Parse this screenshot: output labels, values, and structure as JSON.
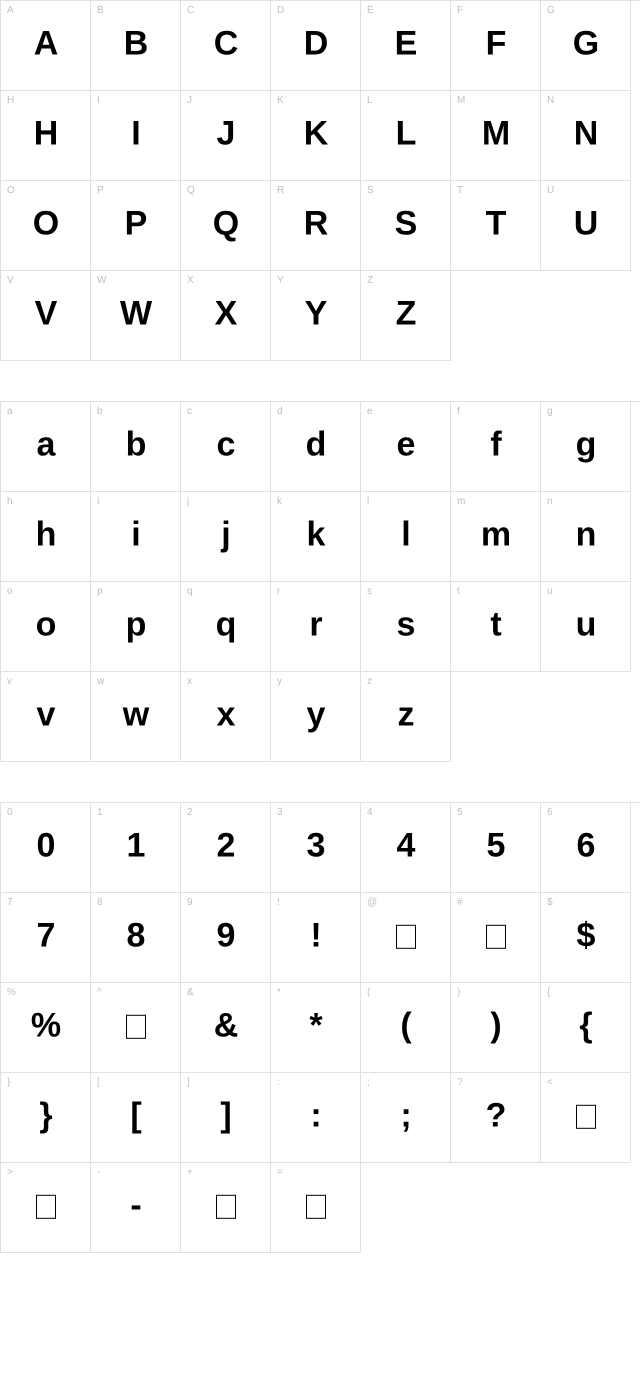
{
  "cell_border_color": "#e0e0e0",
  "label_color": "#bfbfbf",
  "label_fontsize": 10,
  "glyph_color": "#000000",
  "glyph_fontsize": 34,
  "background_color": "#ffffff",
  "columns": 7,
  "cell_size": 90,
  "sections": [
    {
      "name": "uppercase",
      "cells": [
        {
          "label": "A",
          "glyph": "A"
        },
        {
          "label": "B",
          "glyph": "B"
        },
        {
          "label": "C",
          "glyph": "C"
        },
        {
          "label": "D",
          "glyph": "D"
        },
        {
          "label": "E",
          "glyph": "E"
        },
        {
          "label": "F",
          "glyph": "F"
        },
        {
          "label": "G",
          "glyph": "G"
        },
        {
          "label": "H",
          "glyph": "H"
        },
        {
          "label": "I",
          "glyph": "I"
        },
        {
          "label": "J",
          "glyph": "J"
        },
        {
          "label": "K",
          "glyph": "K"
        },
        {
          "label": "L",
          "glyph": "L"
        },
        {
          "label": "M",
          "glyph": "M"
        },
        {
          "label": "N",
          "glyph": "N"
        },
        {
          "label": "O",
          "glyph": "O"
        },
        {
          "label": "P",
          "glyph": "P"
        },
        {
          "label": "Q",
          "glyph": "Q"
        },
        {
          "label": "R",
          "glyph": "R"
        },
        {
          "label": "S",
          "glyph": "S"
        },
        {
          "label": "T",
          "glyph": "T"
        },
        {
          "label": "U",
          "glyph": "U"
        },
        {
          "label": "V",
          "glyph": "V"
        },
        {
          "label": "W",
          "glyph": "W"
        },
        {
          "label": "X",
          "glyph": "X"
        },
        {
          "label": "Y",
          "glyph": "Y"
        },
        {
          "label": "Z",
          "glyph": "Z"
        }
      ]
    },
    {
      "name": "lowercase",
      "cells": [
        {
          "label": "a",
          "glyph": "a"
        },
        {
          "label": "b",
          "glyph": "b"
        },
        {
          "label": "c",
          "glyph": "c"
        },
        {
          "label": "d",
          "glyph": "d"
        },
        {
          "label": "e",
          "glyph": "e"
        },
        {
          "label": "f",
          "glyph": "f"
        },
        {
          "label": "g",
          "glyph": "g"
        },
        {
          "label": "h",
          "glyph": "h"
        },
        {
          "label": "i",
          "glyph": "i"
        },
        {
          "label": "j",
          "glyph": "j"
        },
        {
          "label": "k",
          "glyph": "k"
        },
        {
          "label": "l",
          "glyph": "l"
        },
        {
          "label": "m",
          "glyph": "m"
        },
        {
          "label": "n",
          "glyph": "n"
        },
        {
          "label": "o",
          "glyph": "o"
        },
        {
          "label": "p",
          "glyph": "p"
        },
        {
          "label": "q",
          "glyph": "q"
        },
        {
          "label": "r",
          "glyph": "r"
        },
        {
          "label": "s",
          "glyph": "s"
        },
        {
          "label": "t",
          "glyph": "t"
        },
        {
          "label": "u",
          "glyph": "u"
        },
        {
          "label": "v",
          "glyph": "v"
        },
        {
          "label": "w",
          "glyph": "w"
        },
        {
          "label": "x",
          "glyph": "x"
        },
        {
          "label": "y",
          "glyph": "y"
        },
        {
          "label": "z",
          "glyph": "z"
        }
      ]
    },
    {
      "name": "numbers-symbols",
      "cells": [
        {
          "label": "0",
          "glyph": "0"
        },
        {
          "label": "1",
          "glyph": "1"
        },
        {
          "label": "2",
          "glyph": "2"
        },
        {
          "label": "3",
          "glyph": "3"
        },
        {
          "label": "4",
          "glyph": "4"
        },
        {
          "label": "5",
          "glyph": "5"
        },
        {
          "label": "6",
          "glyph": "6"
        },
        {
          "label": "7",
          "glyph": "7"
        },
        {
          "label": "8",
          "glyph": "8"
        },
        {
          "label": "9",
          "glyph": "9"
        },
        {
          "label": "!",
          "glyph": "!"
        },
        {
          "label": "@",
          "glyph": "",
          "box": true
        },
        {
          "label": "#",
          "glyph": "",
          "box": true
        },
        {
          "label": "$",
          "glyph": "$"
        },
        {
          "label": "%",
          "glyph": "%"
        },
        {
          "label": "^",
          "glyph": "",
          "box": true
        },
        {
          "label": "&",
          "glyph": "&"
        },
        {
          "label": "*",
          "glyph": "*"
        },
        {
          "label": "(",
          "glyph": "("
        },
        {
          "label": ")",
          "glyph": ")"
        },
        {
          "label": "{",
          "glyph": "{"
        },
        {
          "label": "}",
          "glyph": "}"
        },
        {
          "label": "[",
          "glyph": "["
        },
        {
          "label": "]",
          "glyph": "]"
        },
        {
          "label": ":",
          "glyph": ":"
        },
        {
          "label": ";",
          "glyph": ";"
        },
        {
          "label": "?",
          "glyph": "?"
        },
        {
          "label": "<",
          "glyph": "",
          "box": true
        },
        {
          "label": ">",
          "glyph": "",
          "box": true
        },
        {
          "label": "-",
          "glyph": "-"
        },
        {
          "label": "+",
          "glyph": "",
          "box": true
        },
        {
          "label": "=",
          "glyph": "",
          "box": true
        }
      ]
    }
  ]
}
